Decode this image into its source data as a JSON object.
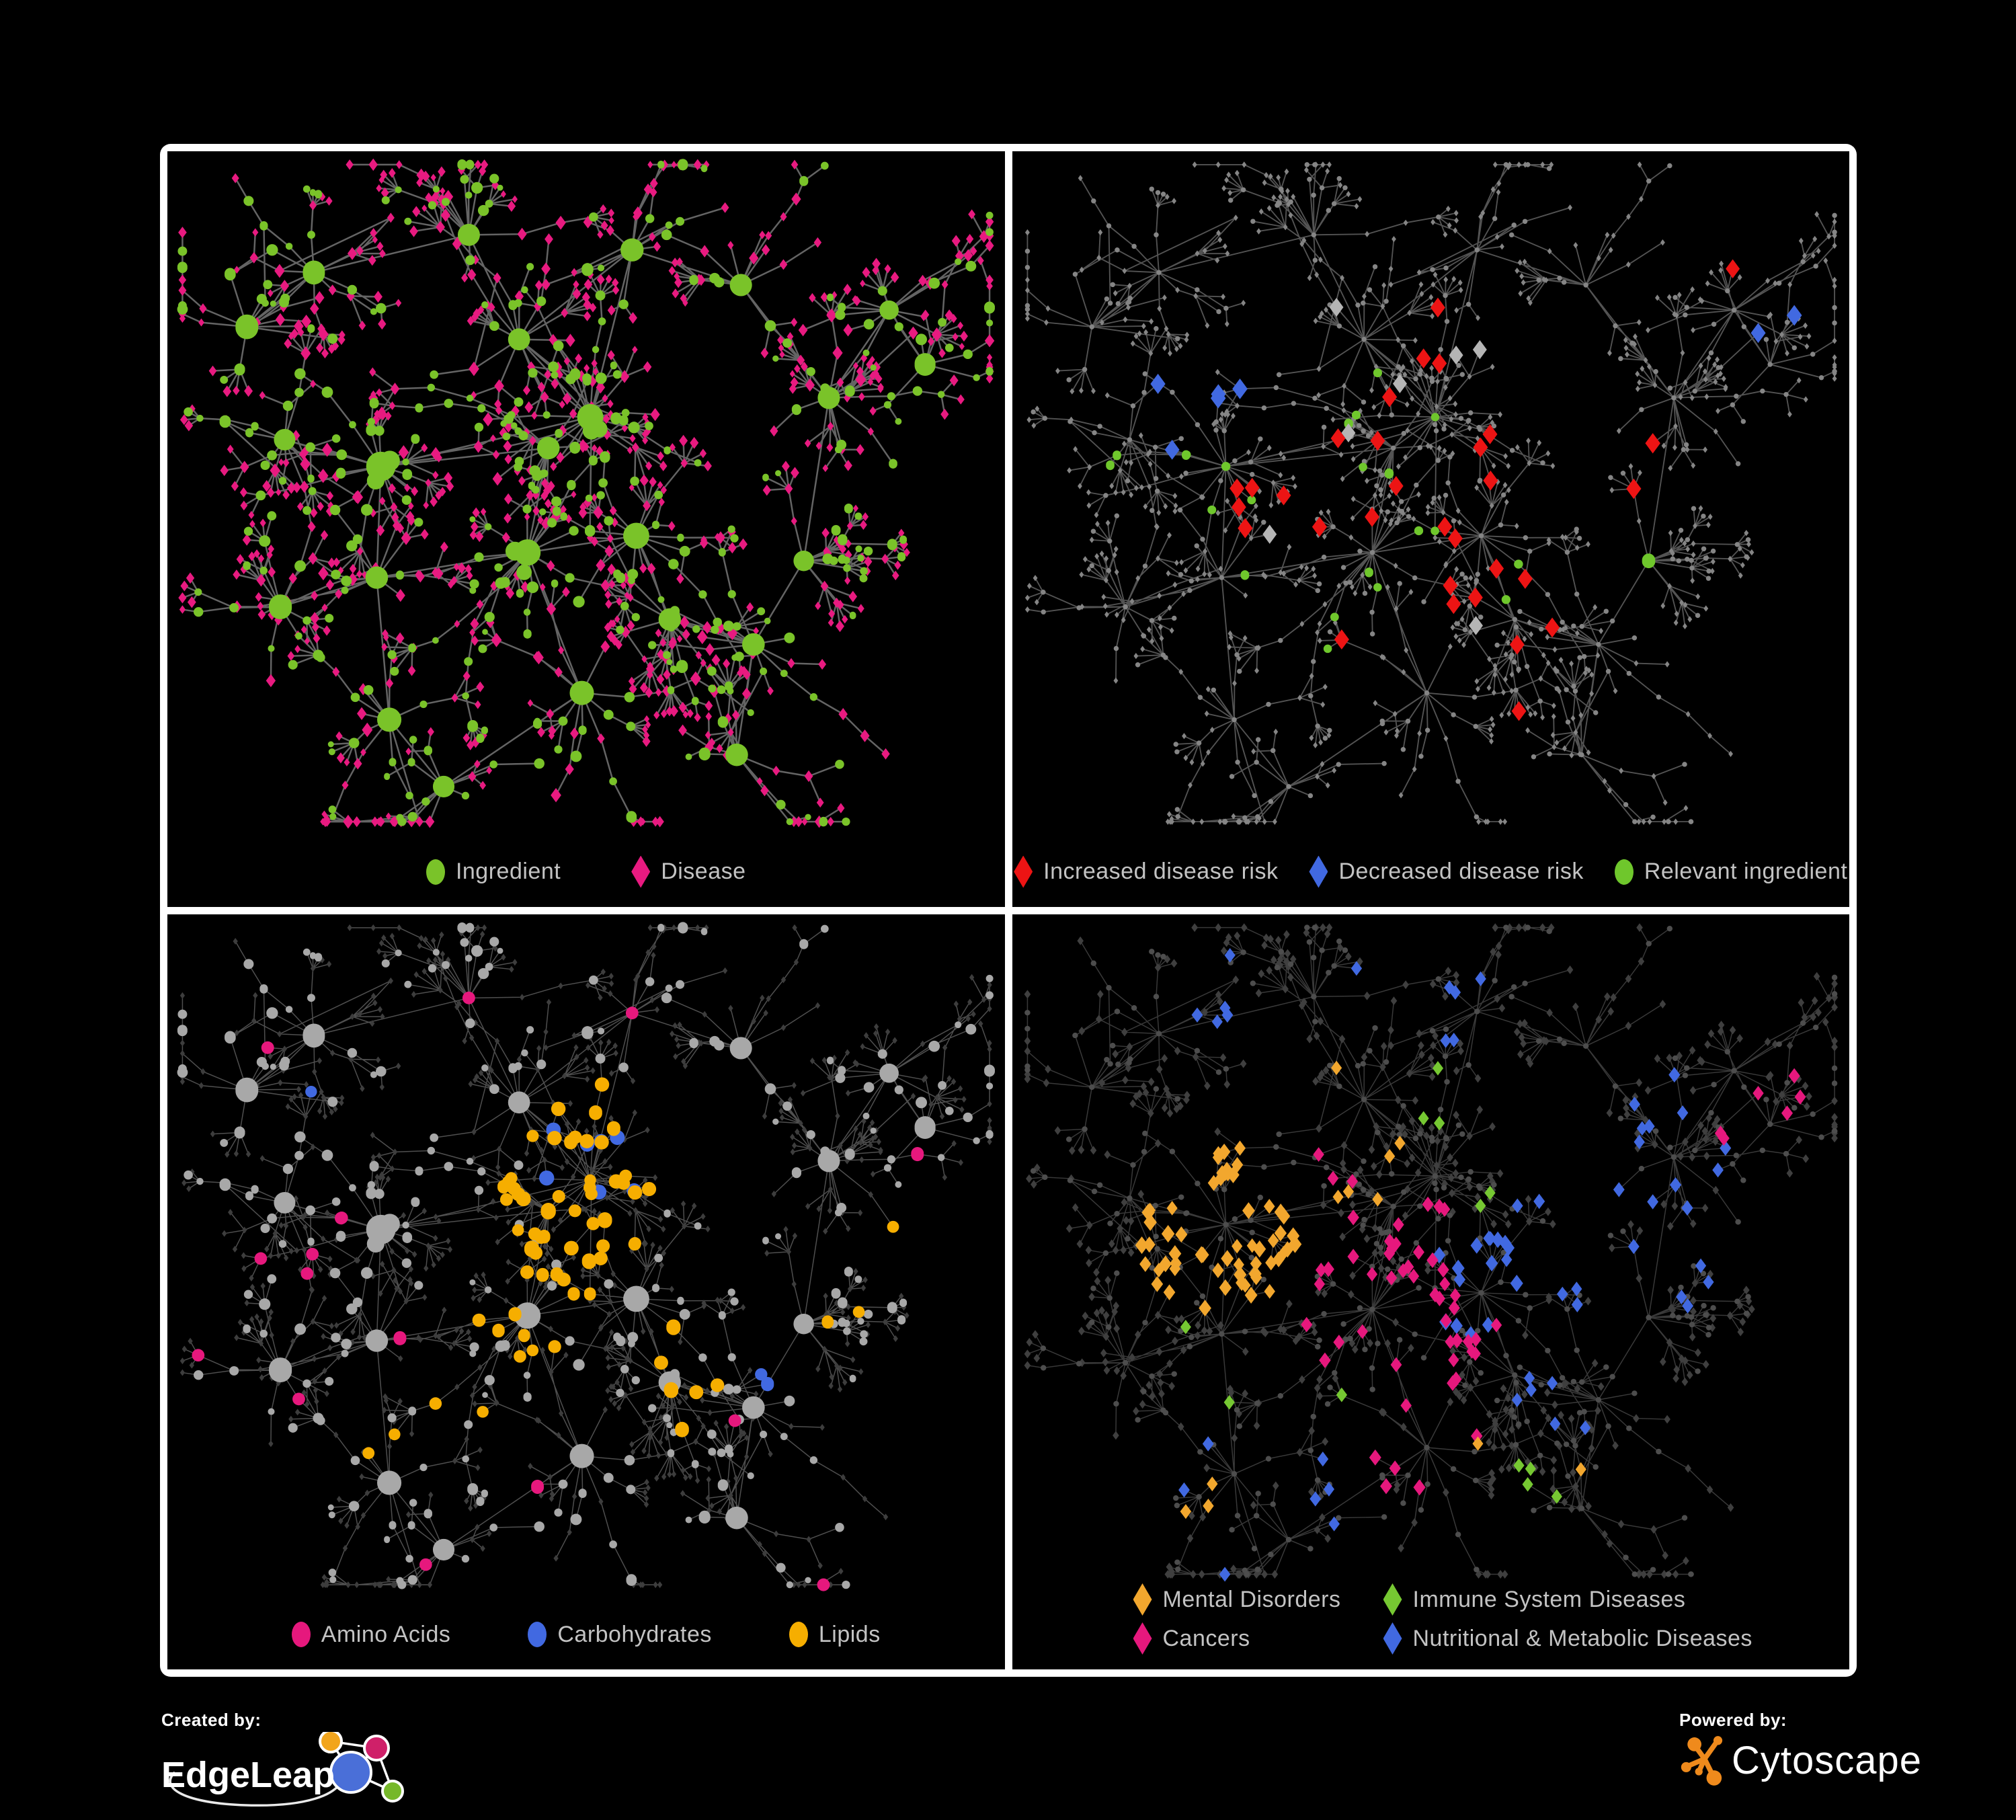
{
  "page": {
    "background": "#000000",
    "frame_color": "#ffffff"
  },
  "panels": [
    {
      "id": "ingredient-disease",
      "legend": [
        {
          "label": "Ingredient",
          "shape": "circle",
          "color": "#7ac329"
        },
        {
          "label": "Disease",
          "shape": "diamond",
          "color": "#e81a80"
        }
      ],
      "style": {
        "mode": "typed",
        "edge": {
          "color": "#6f6f6f",
          "width": 2.0,
          "opacity": 0.9
        }
      }
    },
    {
      "id": "disease-risk",
      "legend": [
        {
          "label": "Increased disease risk",
          "shape": "diamond",
          "color": "#ed1414"
        },
        {
          "label": "Decreased disease risk",
          "shape": "diamond",
          "color": "#4169e1"
        },
        {
          "label": "Relevant ingredient",
          "shape": "circle",
          "color": "#6fc72c"
        }
      ],
      "style": {
        "mode": "classes",
        "edge": {
          "color": "#616161",
          "width": 1.5,
          "opacity": 0.85
        },
        "base": {
          "circle": {
            "color": "#858585",
            "r": 3
          },
          "diamond": {
            "color": "#858585",
            "r": 3
          }
        },
        "extra_gray": "#b5b5b5"
      }
    },
    {
      "id": "ingredient-classes",
      "legend": [
        {
          "label": "Amino Acids",
          "shape": "circle",
          "color": "#e6187d"
        },
        {
          "label": "Carbohydrates",
          "shape": "circle",
          "color": "#4169e1"
        },
        {
          "label": "Lipids",
          "shape": "circle",
          "color": "#f6ae00"
        }
      ],
      "style": {
        "mode": "classes",
        "edge": {
          "color": "#9d9d9d",
          "width": 1.2,
          "opacity": 0.5
        },
        "base": {
          "circle": {
            "color": "#a8a8a8",
            "r": "gen"
          },
          "diamond": {
            "color": "#3d3d3d",
            "r": 3.2
          }
        }
      }
    },
    {
      "id": "disease-classes",
      "legend": [
        {
          "label": "Mental Disorders",
          "shape": "diamond",
          "color": "#f2a72e"
        },
        {
          "label": "Immune System Diseases",
          "shape": "diamond",
          "color": "#76c832"
        },
        {
          "label": "Cancers",
          "shape": "diamond",
          "color": "#e6187d"
        },
        {
          "label": "Nutritional & Metabolic Diseases",
          "shape": "diamond",
          "color": "#4169e1"
        }
      ],
      "style": {
        "mode": "classes",
        "edge": {
          "color": "#8f8f8f",
          "width": 1.2,
          "opacity": 0.4
        },
        "base": {
          "circle": {
            "color": "#4d4d4d",
            "r": 3.4
          },
          "diamond": {
            "color": "#3f3f3f",
            "r": 4.2
          }
        }
      }
    }
  ],
  "footer": {
    "created_by_label": "Created by:",
    "created_by_name": "EdgeLeap",
    "powered_by_label": "Powered by:",
    "powered_by_name": "Cytoscape",
    "edgeleap_colors": {
      "blue": "#4a6fd8",
      "orange": "#f2a51c",
      "pink": "#cf2069",
      "green": "#76b82a"
    },
    "cytoscape_orange": "#ef8a1c"
  }
}
